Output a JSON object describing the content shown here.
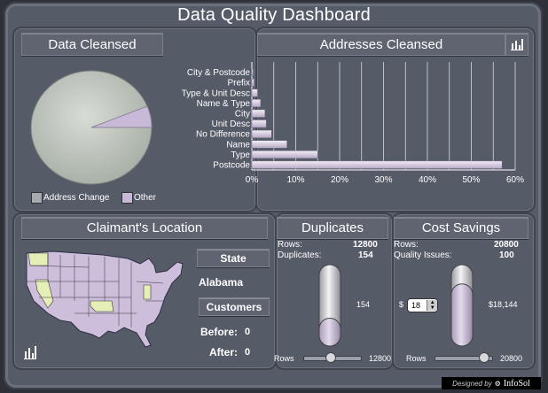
{
  "app": {
    "title": "Data Quality Dashboard"
  },
  "data_cleansed": {
    "header": "Data Cleansed",
    "legend": [
      {
        "label": "Address Change",
        "color": "#a7aaaf"
      },
      {
        "label": "Other",
        "color": "#c8b9d8"
      }
    ],
    "chart_data": {
      "type": "pie",
      "categories": [
        "Address Change",
        "Other"
      ],
      "values": [
        95,
        5
      ]
    }
  },
  "addresses_cleansed": {
    "header": "Addresses Cleansed",
    "icon": "bar-chart-icon",
    "chart_data": {
      "type": "bar",
      "orientation": "horizontal",
      "categories": [
        "City & Postcode",
        "Prefix",
        "Type & Unit Desc",
        "Name & Type",
        "City",
        "Unit Desc",
        "No Difference",
        "Name",
        "Type",
        "Postcode"
      ],
      "values": [
        0.3,
        0.5,
        1.3,
        2.0,
        3.0,
        3.3,
        4.5,
        8.0,
        15.0,
        57.0
      ],
      "xlim": [
        0,
        60
      ],
      "xticks": [
        "0%",
        "10%",
        "20%",
        "30%",
        "40%",
        "50%",
        "60%"
      ],
      "grid": true
    }
  },
  "claimant_location": {
    "header": "Claimant's Location",
    "state_button": "State",
    "state_value": "Alabama",
    "customers_button": "Customers",
    "before_label": "Before:",
    "before_value": "0",
    "after_label": "After:",
    "after_value": "0",
    "icon": "bar-chart-icon"
  },
  "duplicates": {
    "header": "Duplicates",
    "rows_label": "Rows:",
    "rows_value": "12800",
    "dup_label": "Duplicates:",
    "dup_value": "154",
    "gauge_value_label": "154",
    "gauge_fraction": 0.35,
    "slider_label": "Rows",
    "slider_value": "12800",
    "slider_fraction": 0.45
  },
  "cost_savings": {
    "header": "Cost Savings",
    "rows_label": "Rows:",
    "rows_value": "20800",
    "qi_label": "Quality Issues:",
    "qi_value": "100",
    "currency": "$",
    "stepper_value": "18",
    "gauge_value_label": "$18,144",
    "gauge_fraction": 0.78,
    "slider_label": "Rows",
    "slider_value": "20800",
    "slider_fraction": 0.9
  },
  "footer": {
    "designed_by": "Designed by",
    "brand": "InfoSol"
  }
}
